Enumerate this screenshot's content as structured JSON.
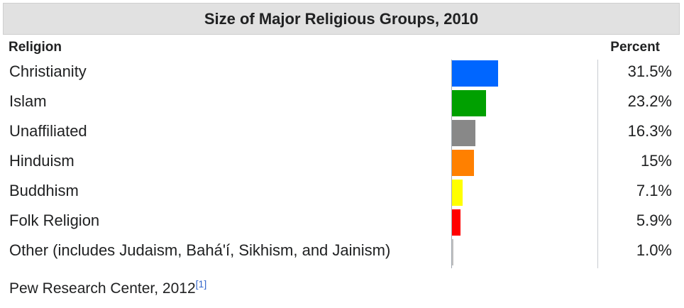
{
  "title": "Size of Major Religious Groups, 2010",
  "headers": {
    "religion": "Religion",
    "percent": "Percent"
  },
  "rows": [
    {
      "label": "Christianity",
      "value_text": "31.5%",
      "value": 31.5,
      "color": "#0066ff"
    },
    {
      "label": "Islam",
      "value_text": "23.2%",
      "value": 23.2,
      "color": "#00a000"
    },
    {
      "label": "Unaffiliated",
      "value_text": "16.3%",
      "value": 16.3,
      "color": "#888888"
    },
    {
      "label": "Hinduism",
      "value_text": "15%",
      "value": 15,
      "color": "#ff8000"
    },
    {
      "label": "Buddhism",
      "value_text": "7.1%",
      "value": 7.1,
      "color": "#ffff00"
    },
    {
      "label": "Folk Religion",
      "value_text": "5.9%",
      "value": 5.9,
      "color": "#ff0000"
    },
    {
      "label": "Other (includes Judaism, Bahá'í, Sikhism, and Jainism)",
      "value_text": "1.0%",
      "value": 1.0,
      "color": "#c0c0c0"
    }
  ],
  "footer": {
    "source": "Pew Research Center, 2012",
    "ref": "[1]"
  },
  "chart_data": {
    "type": "bar",
    "orientation": "horizontal",
    "title": "Size of Major Religious Groups, 2010",
    "categories": [
      "Christianity",
      "Islam",
      "Unaffiliated",
      "Hinduism",
      "Buddhism",
      "Folk Religion",
      "Other (includes Judaism, Bahá'í, Sikhism, and Jainism)"
    ],
    "values": [
      31.5,
      23.2,
      16.3,
      15,
      7.1,
      5.9,
      1.0
    ],
    "unit": "%",
    "colors": [
      "#0066ff",
      "#00a000",
      "#888888",
      "#ff8000",
      "#ffff00",
      "#ff0000",
      "#c0c0c0"
    ],
    "xlim": [
      0,
      100
    ],
    "grid": false,
    "legend": "none"
  }
}
